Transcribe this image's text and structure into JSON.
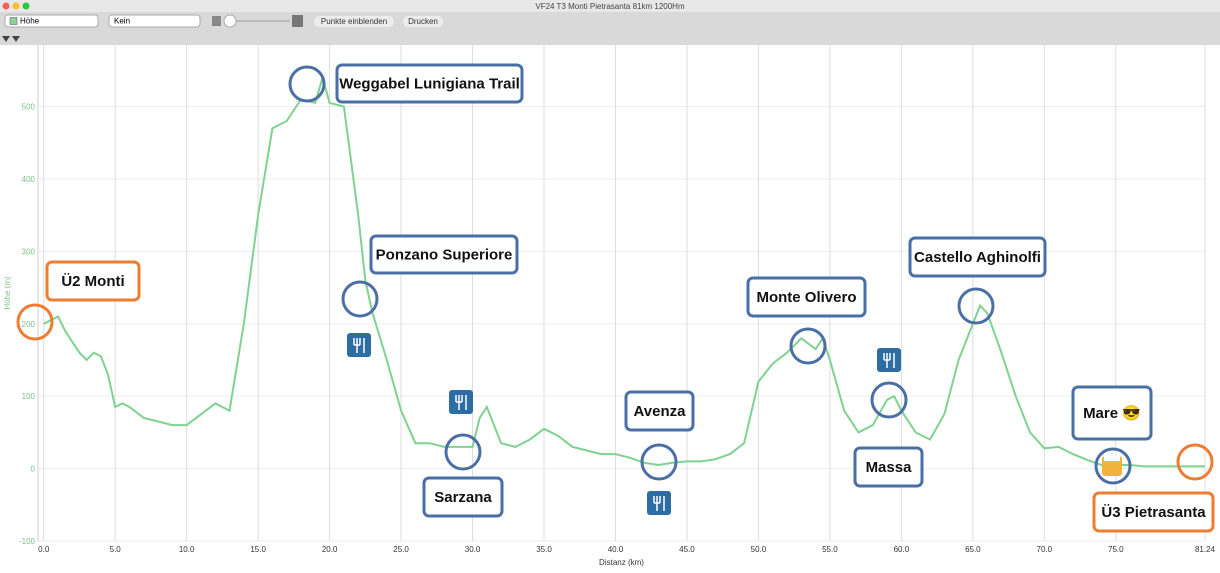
{
  "window": {
    "title": "VF24 T3 Monti Pietrasanta 81km 1200Hm"
  },
  "toolbar": {
    "profile_select": "Höhe",
    "overlay_select": "Kein",
    "show_points": "Punkte einblenden",
    "print": "Drucken"
  },
  "chart_data": {
    "type": "line",
    "xlabel": "Distanz (km)",
    "ylabel": "Höhe (m)",
    "xlim": [
      -0.4,
      81.24
    ],
    "ylim": [
      -100,
      585
    ],
    "xticks": [
      {
        "value": 0,
        "label": "0.0"
      },
      {
        "value": 5,
        "label": "5.0"
      },
      {
        "value": 10,
        "label": "10.0"
      },
      {
        "value": 15,
        "label": "15.0"
      },
      {
        "value": 20,
        "label": "20.0"
      },
      {
        "value": 25,
        "label": "25.0"
      },
      {
        "value": 30,
        "label": "30.0"
      },
      {
        "value": 35,
        "label": "35.0"
      },
      {
        "value": 40,
        "label": "40.0"
      },
      {
        "value": 45,
        "label": "45.0"
      },
      {
        "value": 50,
        "label": "50.0"
      },
      {
        "value": 55,
        "label": "55.0"
      },
      {
        "value": 60,
        "label": "60.0"
      },
      {
        "value": 65,
        "label": "65.0"
      },
      {
        "value": 70,
        "label": "70.0"
      },
      {
        "value": 75,
        "label": "75.0"
      },
      81.24
    ],
    "yticks": [
      -100,
      0,
      100,
      200,
      300,
      400,
      500
    ],
    "grid": true,
    "series": [
      {
        "color": "#7fd28f",
        "x": [
          0,
          0.5,
          1,
          1.5,
          2,
          2.5,
          3,
          3.5,
          4,
          4.5,
          5,
          5.5,
          6,
          7,
          8,
          9,
          10,
          11,
          12,
          13,
          14,
          15,
          16,
          17,
          18,
          19,
          19.5,
          20,
          21,
          22,
          22.5,
          23,
          24,
          25,
          26,
          27,
          28,
          29,
          30,
          30.5,
          31,
          32,
          33,
          34,
          35,
          36,
          37,
          38,
          39,
          40,
          41,
          42,
          43,
          44,
          45,
          46,
          47,
          48,
          49,
          50,
          51,
          52,
          53,
          54,
          54.5,
          55,
          56,
          57,
          58,
          59,
          59.5,
          60,
          61,
          62,
          63,
          64,
          65,
          65.5,
          66,
          67,
          68,
          69,
          70,
          71,
          72,
          73,
          74,
          75,
          76,
          77,
          78,
          79,
          80,
          81.24
        ],
        "values": [
          200,
          205,
          210,
          190,
          175,
          160,
          150,
          160,
          155,
          130,
          85,
          90,
          85,
          70,
          65,
          60,
          60,
          75,
          90,
          80,
          200,
          350,
          470,
          480,
          510,
          505,
          540,
          505,
          500,
          350,
          260,
          215,
          150,
          80,
          35,
          35,
          30,
          30,
          30,
          70,
          85,
          35,
          30,
          40,
          55,
          45,
          30,
          25,
          20,
          20,
          15,
          8,
          5,
          8,
          10,
          10,
          13,
          20,
          35,
          120,
          145,
          160,
          180,
          165,
          180,
          150,
          80,
          50,
          60,
          95,
          100,
          80,
          50,
          40,
          75,
          150,
          200,
          225,
          215,
          160,
          100,
          50,
          28,
          30,
          20,
          12,
          5,
          5,
          5,
          3,
          3,
          3,
          3,
          3
        ]
      }
    ]
  },
  "annotations": [
    "Ü2 Monti",
    "Weggabel Lunigiana Trail",
    "Ponzano Superiore",
    "Sarzana",
    "Avenza",
    "Monte Olivero",
    "Castello Aghinolfi",
    "Massa",
    "Mare 😎",
    "Ü3 Pietrasanta"
  ]
}
